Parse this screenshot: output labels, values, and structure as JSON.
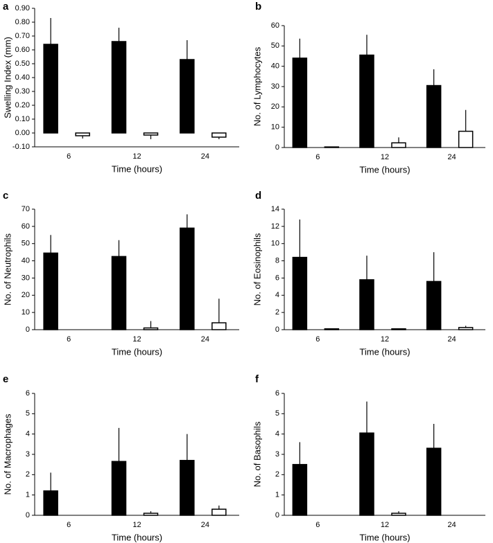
{
  "chart_data": [
    {
      "type": "bar",
      "label": "a",
      "ylabel": "Swelling Index (mm)",
      "xlabel": "Time (hours)",
      "categories": [
        "6",
        "12",
        "24"
      ],
      "series": [
        {
          "color": "#000000",
          "edgecolor": "#000000",
          "values": [
            0.64,
            0.66,
            0.53
          ],
          "errors": [
            0.19,
            0.1,
            0.14
          ]
        },
        {
          "color": "#ffffff",
          "edgecolor": "#000000",
          "values": [
            -0.02,
            -0.015,
            -0.03
          ],
          "errors": [
            0.02,
            0.03,
            0.015
          ]
        }
      ],
      "ylim": [
        -0.1,
        0.9
      ],
      "yticks": [
        {
          "value": -0.1,
          "label": "-0.10"
        },
        {
          "value": 0,
          "label": "0.00"
        },
        {
          "value": 0.1,
          "label": "0.10"
        },
        {
          "value": 0.2,
          "label": "0.20"
        },
        {
          "value": 0.3,
          "label": "0.30"
        },
        {
          "value": 0.4,
          "label": "0.40"
        },
        {
          "value": 0.5,
          "label": "0.50"
        },
        {
          "value": 0.6,
          "label": "0.60"
        },
        {
          "value": 0.7,
          "label": "0.70"
        },
        {
          "value": 0.8,
          "label": "0.80"
        },
        {
          "value": 0.9,
          "label": "0.90"
        }
      ],
      "grid": false
    },
    {
      "type": "bar",
      "label": "b",
      "ylabel": "No. of Lymphocytes",
      "xlabel": "Time (hours)",
      "categories": [
        "6",
        "12",
        "24"
      ],
      "series": [
        {
          "color": "#000000",
          "edgecolor": "#000000",
          "values": [
            44,
            45.5,
            30.5
          ],
          "errors": [
            9.6,
            10,
            8
          ]
        },
        {
          "color": "#ffffff",
          "edgecolor": "#000000",
          "values": [
            0.3,
            2.3,
            8
          ],
          "errors": [
            0,
            2.7,
            10.5
          ]
        }
      ],
      "ylim": [
        0,
        60
      ],
      "yticks": [
        0,
        10,
        20,
        30,
        40,
        50,
        60
      ],
      "grid": false
    },
    {
      "type": "bar",
      "label": "c",
      "ylabel": "No. of Neutrophils",
      "xlabel": "Time (hours)",
      "categories": [
        "6",
        "12",
        "24"
      ],
      "series": [
        {
          "color": "#000000",
          "edgecolor": "#000000",
          "values": [
            44.5,
            42.5,
            59
          ],
          "errors": [
            10.5,
            9.5,
            8
          ]
        },
        {
          "color": "#ffffff",
          "edgecolor": "#000000",
          "values": [
            0,
            1,
            4
          ],
          "errors": [
            0,
            4,
            14
          ]
        }
      ],
      "ylim": [
        0,
        70
      ],
      "yticks": [
        0,
        10,
        20,
        30,
        40,
        50,
        60,
        70
      ],
      "grid": false
    },
    {
      "type": "bar",
      "label": "d",
      "ylabel": "No. of Eosinophils",
      "xlabel": "Time (hours)",
      "categories": [
        "6",
        "12",
        "24"
      ],
      "series": [
        {
          "color": "#000000",
          "edgecolor": "#000000",
          "values": [
            8.4,
            5.8,
            5.6
          ],
          "errors": [
            4.4,
            2.8,
            3.4
          ]
        },
        {
          "color": "#ffffff",
          "edgecolor": "#000000",
          "values": [
            0.1,
            0.1,
            0.25
          ],
          "errors": [
            0,
            0,
            0.2
          ]
        }
      ],
      "ylim": [
        0,
        14
      ],
      "yticks": [
        0,
        2,
        4,
        6,
        8,
        10,
        12,
        14
      ],
      "grid": false
    },
    {
      "type": "bar",
      "label": "e",
      "ylabel": "No. of Macrophages",
      "xlabel": "Time (hours)",
      "categories": [
        "6",
        "12",
        "24"
      ],
      "series": [
        {
          "color": "#000000",
          "edgecolor": "#000000",
          "values": [
            1.2,
            2.65,
            2.7
          ],
          "errors": [
            0.9,
            1.65,
            1.3
          ]
        },
        {
          "color": "#ffffff",
          "edgecolor": "#000000",
          "values": [
            0,
            0.1,
            0.3
          ],
          "errors": [
            0,
            0.1,
            0.18
          ]
        }
      ],
      "ylim": [
        0,
        6
      ],
      "yticks": [
        0,
        1,
        2,
        3,
        4,
        5,
        6
      ],
      "grid": false
    },
    {
      "type": "bar",
      "label": "f",
      "ylabel": "No. of Basophils",
      "xlabel": "Time (hours)",
      "categories": [
        "6",
        "12",
        "24"
      ],
      "series": [
        {
          "color": "#000000",
          "edgecolor": "#000000",
          "values": [
            2.5,
            4.05,
            3.3
          ],
          "errors": [
            1.1,
            1.55,
            1.2
          ]
        },
        {
          "color": "#ffffff",
          "edgecolor": "#000000",
          "values": [
            0,
            0.1,
            0
          ],
          "errors": [
            0,
            0.1,
            0
          ]
        }
      ],
      "ylim": [
        0,
        6
      ],
      "yticks": [
        0,
        1,
        2,
        3,
        4,
        5,
        6
      ],
      "grid": false
    }
  ]
}
